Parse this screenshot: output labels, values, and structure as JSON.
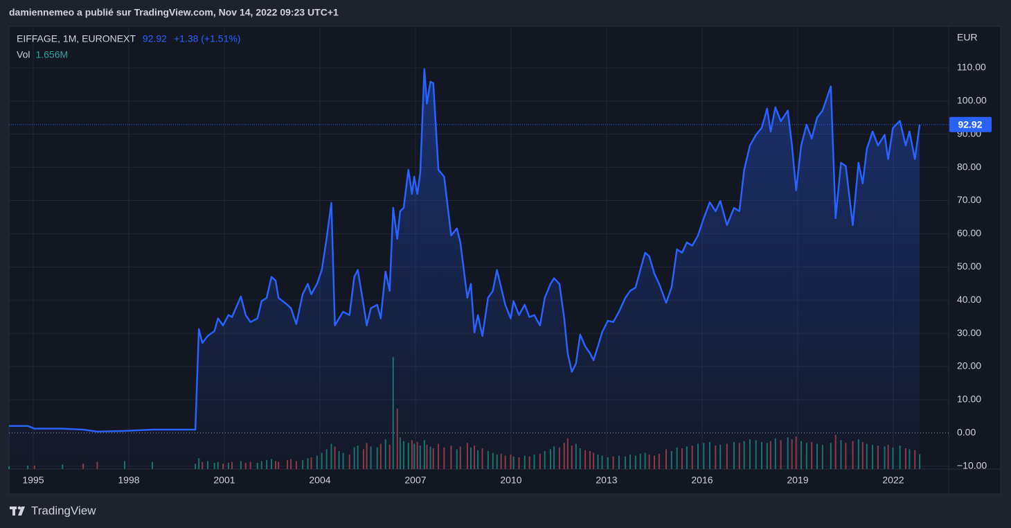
{
  "header": {
    "text": "damiennemeo a publié sur TradingView.com, Nov 14, 2022 09:23 UTC+1"
  },
  "chart_data": {
    "type": "line",
    "y_unit": "EUR",
    "change_label": "+1.38 (+1.51%)",
    "grid": true,
    "xlim": [
      1994.24,
      2023.74
    ],
    "xticks": [
      1995,
      1998,
      2001,
      2004,
      2007,
      2010,
      2013,
      2016,
      2019,
      2022
    ],
    "ylim": [
      -10.9,
      122.5
    ],
    "yticks": [
      {
        "value": -10,
        "label": "−10.00"
      },
      {
        "value": 0,
        "label": "0.00"
      },
      {
        "value": 10,
        "label": "10.00"
      },
      {
        "value": 20,
        "label": "20.00"
      },
      {
        "value": 30,
        "label": "30.00"
      },
      {
        "value": 40,
        "label": "40.00"
      },
      {
        "value": 50,
        "label": "50.00"
      },
      {
        "value": 60,
        "label": "60.00"
      },
      {
        "value": 70,
        "label": "70.00"
      },
      {
        "value": 80,
        "label": "80.00"
      },
      {
        "value": 90,
        "label": "90.00"
      },
      {
        "value": 100,
        "label": "100.00"
      },
      {
        "value": 110,
        "label": "110.00"
      }
    ],
    "x": [
      1994.24,
      1994.83,
      1995.04,
      1995.92,
      1996.57,
      1997.01,
      1997.87,
      1998.74,
      2000.09,
      2000.2,
      2000.31,
      2000.48,
      2000.69,
      2000.8,
      2000.96,
      2001.13,
      2001.24,
      2001.52,
      2001.67,
      2001.82,
      2002.04,
      2002.17,
      2002.33,
      2002.48,
      2002.61,
      2002.7,
      2002.98,
      2003.09,
      2003.26,
      2003.46,
      2003.62,
      2003.73,
      2003.91,
      2004.06,
      2004.21,
      2004.36,
      2004.47,
      2004.6,
      2004.73,
      2004.93,
      2005.08,
      2005.19,
      2005.37,
      2005.47,
      2005.6,
      2005.8,
      2005.91,
      2006.06,
      2006.19,
      2006.3,
      2006.43,
      2006.52,
      2006.63,
      2006.78,
      2006.89,
      2006.96,
      2007.06,
      2007.15,
      2007.28,
      2007.36,
      2007.47,
      2007.56,
      2007.72,
      2007.9,
      2008.12,
      2008.3,
      2008.41,
      2008.63,
      2008.74,
      2008.85,
      2008.96,
      2009.1,
      2009.28,
      2009.43,
      2009.56,
      2009.69,
      2009.82,
      2009.99,
      2010.08,
      2010.25,
      2010.43,
      2010.58,
      2010.73,
      2010.91,
      2011.06,
      2011.24,
      2011.35,
      2011.52,
      2011.67,
      2011.78,
      2011.91,
      2012.04,
      2012.17,
      2012.33,
      2012.48,
      2012.59,
      2012.73,
      2012.86,
      2013.04,
      2013.21,
      2013.39,
      2013.59,
      2013.74,
      2013.91,
      2014.06,
      2014.21,
      2014.34,
      2014.5,
      2014.65,
      2014.87,
      2015.04,
      2015.21,
      2015.37,
      2015.52,
      2015.69,
      2015.87,
      2016.05,
      2016.24,
      2016.42,
      2016.57,
      2016.78,
      2017.0,
      2017.17,
      2017.32,
      2017.5,
      2017.69,
      2017.87,
      2018.04,
      2018.15,
      2018.3,
      2018.47,
      2018.69,
      2018.82,
      2018.95,
      2019.11,
      2019.28,
      2019.44,
      2019.61,
      2019.78,
      2020.04,
      2020.19,
      2020.36,
      2020.51,
      2020.73,
      2020.91,
      2021.04,
      2021.17,
      2021.35,
      2021.52,
      2021.73,
      2021.84,
      2021.99,
      2022.21,
      2022.39,
      2022.51,
      2022.68,
      2022.83
    ],
    "series": [
      {
        "name": "EIFFAGE, 1M, EURONEXT",
        "color": "#2962ff",
        "values": [
          2.1,
          2.1,
          1.3,
          1.3,
          1.0,
          0.4,
          0.6,
          1.0,
          1.0,
          31.3,
          27.1,
          29.2,
          30.7,
          34.5,
          32.4,
          35.5,
          34.9,
          41.1,
          35.5,
          33.4,
          34.5,
          39.7,
          40.7,
          47.0,
          45.9,
          40.7,
          38.6,
          37.6,
          32.8,
          41.8,
          44.9,
          41.8,
          44.9,
          49.1,
          58.5,
          69.3,
          32.4,
          34.5,
          36.5,
          35.5,
          47.0,
          49.1,
          38.6,
          32.4,
          37.6,
          38.6,
          34.5,
          48.6,
          42.8,
          67.8,
          58.5,
          66.8,
          67.8,
          79.3,
          72.0,
          77.2,
          72.0,
          78.3,
          109.6,
          99.2,
          105.8,
          105.4,
          79.3,
          77.2,
          59.5,
          61.6,
          57.4,
          40.7,
          44.9,
          30.3,
          35.5,
          29.2,
          40.7,
          42.8,
          49.1,
          43.8,
          38.6,
          34.5,
          39.7,
          35.5,
          38.6,
          34.9,
          35.5,
          32.4,
          40.7,
          44.9,
          46.6,
          44.9,
          34.5,
          24.0,
          18.4,
          20.9,
          29.6,
          26.1,
          24.0,
          21.9,
          26.1,
          30.3,
          33.8,
          33.4,
          36.5,
          40.7,
          42.8,
          43.8,
          49.1,
          54.3,
          53.2,
          48.0,
          44.9,
          39.2,
          43.8,
          55.3,
          54.3,
          57.4,
          56.4,
          59.5,
          64.7,
          69.5,
          66.8,
          69.9,
          62.6,
          67.8,
          66.8,
          79.3,
          86.6,
          89.8,
          91.9,
          97.7,
          90.8,
          98.1,
          93.9,
          97.1,
          86.6,
          73.1,
          86.6,
          92.9,
          88.7,
          95.0,
          97.1,
          104.4,
          64.7,
          81.4,
          80.4,
          62.6,
          81.4,
          75.2,
          85.6,
          90.8,
          86.6,
          89.8,
          82.5,
          91.9,
          94.0,
          86.6,
          90.8,
          82.5,
          92.92
        ]
      }
    ],
    "volume": {
      "name": "Vol",
      "last_label": "1.656M",
      "up_color": "#1d8a7e",
      "down_color": "#b2424a",
      "ylim": [
        0,
        49
      ],
      "values": [
        0.3,
        0.4,
        0.4,
        0.5,
        0.6,
        0.8,
        0.9,
        0.8,
        0.6,
        1.2,
        0.8,
        0.9,
        0.7,
        0.8,
        0.6,
        0.7,
        0.8,
        0.9,
        0.7,
        0.8,
        0.7,
        0.9,
        1.0,
        1.1,
        0.9,
        0.8,
        1.0,
        1.1,
        0.9,
        1.0,
        1.2,
        1.3,
        1.5,
        1.8,
        2.2,
        2.8,
        2.5,
        2.0,
        1.8,
        1.6,
        2.4,
        2.6,
        2.2,
        2.9,
        2.5,
        2.4,
        2.8,
        3.3,
        2.7,
        12.4,
        6.7,
        3.5,
        3.1,
        2.9,
        3.2,
        2.8,
        3.0,
        2.6,
        3.2,
        2.7,
        2.5,
        2.3,
        2.8,
        2.4,
        2.6,
        2.2,
        2.5,
        2.9,
        2.4,
        2.6,
        2.1,
        2.3,
        2.0,
        1.8,
        1.6,
        1.7,
        1.5,
        1.6,
        1.4,
        1.3,
        1.5,
        1.4,
        1.6,
        1.7,
        2.0,
        2.2,
        2.5,
        2.4,
        2.9,
        3.4,
        2.6,
        2.8,
        2.3,
        2.1,
        2.0,
        1.8,
        1.6,
        1.5,
        1.3,
        1.4,
        1.5,
        1.4,
        1.6,
        1.5,
        1.7,
        1.8,
        1.6,
        1.5,
        1.7,
        2.2,
        2.0,
        2.4,
        2.3,
        2.5,
        2.6,
        2.8,
        2.9,
        3.0,
        2.6,
        2.7,
        2.8,
        3.0,
        2.9,
        3.1,
        3.3,
        3.2,
        3.0,
        2.9,
        3.1,
        3.4,
        3.2,
        3.5,
        3.3,
        3.6,
        3.1,
        2.9,
        3.0,
        2.8,
        2.7,
        2.9,
        3.8,
        3.2,
        2.9,
        3.1,
        3.3,
        3.0,
        2.8,
        2.7,
        2.6,
        2.5,
        2.7,
        2.4,
        2.6,
        2.3,
        2.2,
        2.1,
        1.656
      ]
    }
  },
  "footer": {
    "brand": "TradingView"
  }
}
